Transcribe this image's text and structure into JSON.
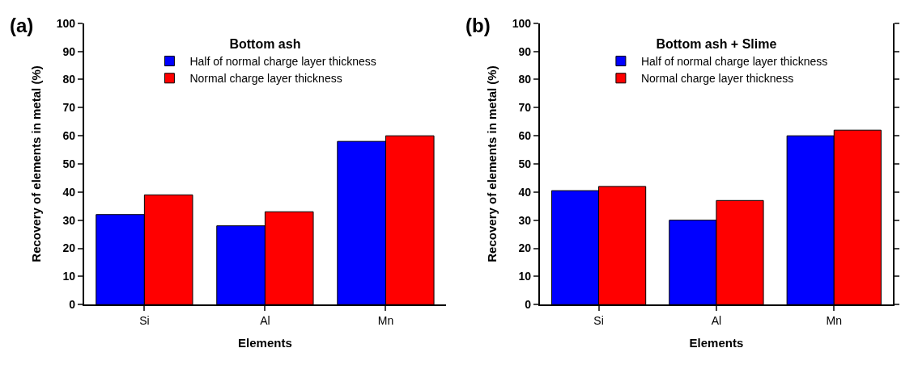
{
  "chart_data": [
    {
      "type": "bar",
      "annotations": [
        "(a)"
      ],
      "legend_title": "Bottom ash",
      "legend": "top",
      "xlabel": "Elements",
      "ylabel": "Recovery of elements in metal (%)",
      "categories": [
        "Si",
        "Al",
        "Mn"
      ],
      "ylim": [
        0,
        100
      ],
      "yticks": [
        0,
        10,
        20,
        30,
        40,
        50,
        60,
        70,
        80,
        90,
        100
      ],
      "series": [
        {
          "name": "Half of normal charge layer thickness",
          "color": "#0000ff",
          "values": [
            32,
            28,
            58
          ]
        },
        {
          "name": "Normal charge layer thickness",
          "color": "#ff0000",
          "values": [
            39,
            33,
            60
          ]
        }
      ]
    },
    {
      "type": "bar",
      "annotations": [
        "(b)"
      ],
      "legend_title": "Bottom ash + Slime",
      "legend": "top",
      "xlabel": "Elements",
      "ylabel": "Recovery of elements in metal (%)",
      "categories": [
        "Si",
        "Al",
        "Mn"
      ],
      "ylim": [
        0,
        100
      ],
      "yticks": [
        0,
        10,
        20,
        30,
        40,
        50,
        60,
        70,
        80,
        90,
        100
      ],
      "series": [
        {
          "name": "Half of normal charge layer thickness",
          "color": "#0000ff",
          "values": [
            40.5,
            30,
            60
          ]
        },
        {
          "name": "Normal charge layer thickness",
          "color": "#ff0000",
          "values": [
            42,
            37,
            62
          ]
        }
      ]
    }
  ]
}
